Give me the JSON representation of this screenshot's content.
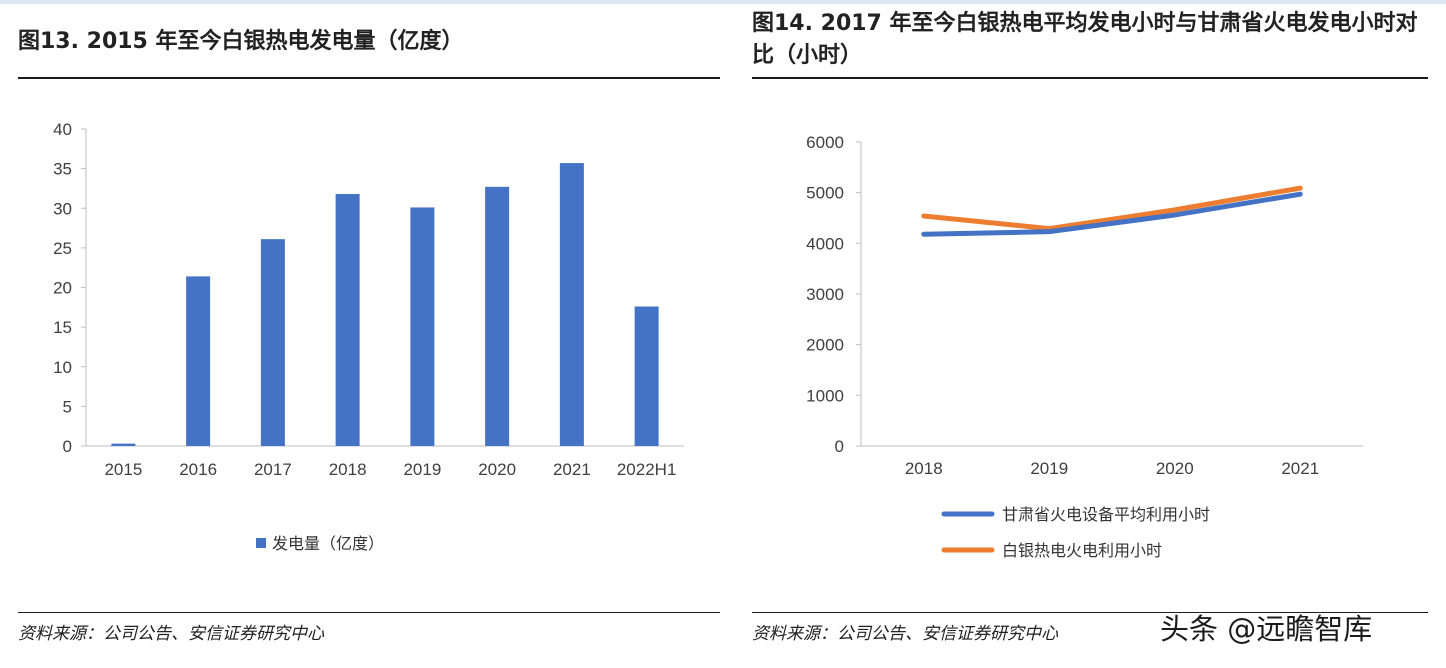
{
  "left": {
    "title": "图13. 2015 年至今白银热电发电量（亿度）",
    "source": "资料来源：公司公告、安信证券研究中心",
    "chart_data": {
      "type": "bar",
      "categories": [
        "2015",
        "2016",
        "2017",
        "2018",
        "2019",
        "2020",
        "2021",
        "2022H1"
      ],
      "series": [
        {
          "name": "发电量（亿度）",
          "values": [
            0.3,
            21.4,
            26.1,
            31.8,
            30.1,
            32.7,
            35.7,
            17.6
          ]
        }
      ],
      "ylim": [
        0,
        40
      ],
      "yticks": [
        "0",
        "5",
        "10",
        "15",
        "20",
        "25",
        "30",
        "35",
        "40"
      ],
      "color": "#4472c4",
      "legend": "bottom",
      "grid": false
    }
  },
  "right": {
    "title": "图14. 2017 年至今白银热电平均发电小时与甘肃省火电发电小时对比（小时）",
    "source": "资料来源：公司公告、安信证券研究中心",
    "chart_data": {
      "type": "line",
      "categories": [
        "2018",
        "2019",
        "2020",
        "2021"
      ],
      "series": [
        {
          "name": "甘肃省火电设备平均利用小时",
          "values": [
            4180,
            4230,
            4560,
            4970
          ],
          "color": "#4472c4"
        },
        {
          "name": "白银热电火电利用小时",
          "values": [
            4540,
            4290,
            4660,
            5090
          ],
          "color": "#ed7d31"
        }
      ],
      "ylim": [
        0,
        6000
      ],
      "yticks": [
        "0",
        "1000",
        "2000",
        "3000",
        "4000",
        "5000",
        "6000"
      ],
      "legend": "bottom",
      "grid": false
    }
  },
  "watermark": "头条 @远瞻智库"
}
